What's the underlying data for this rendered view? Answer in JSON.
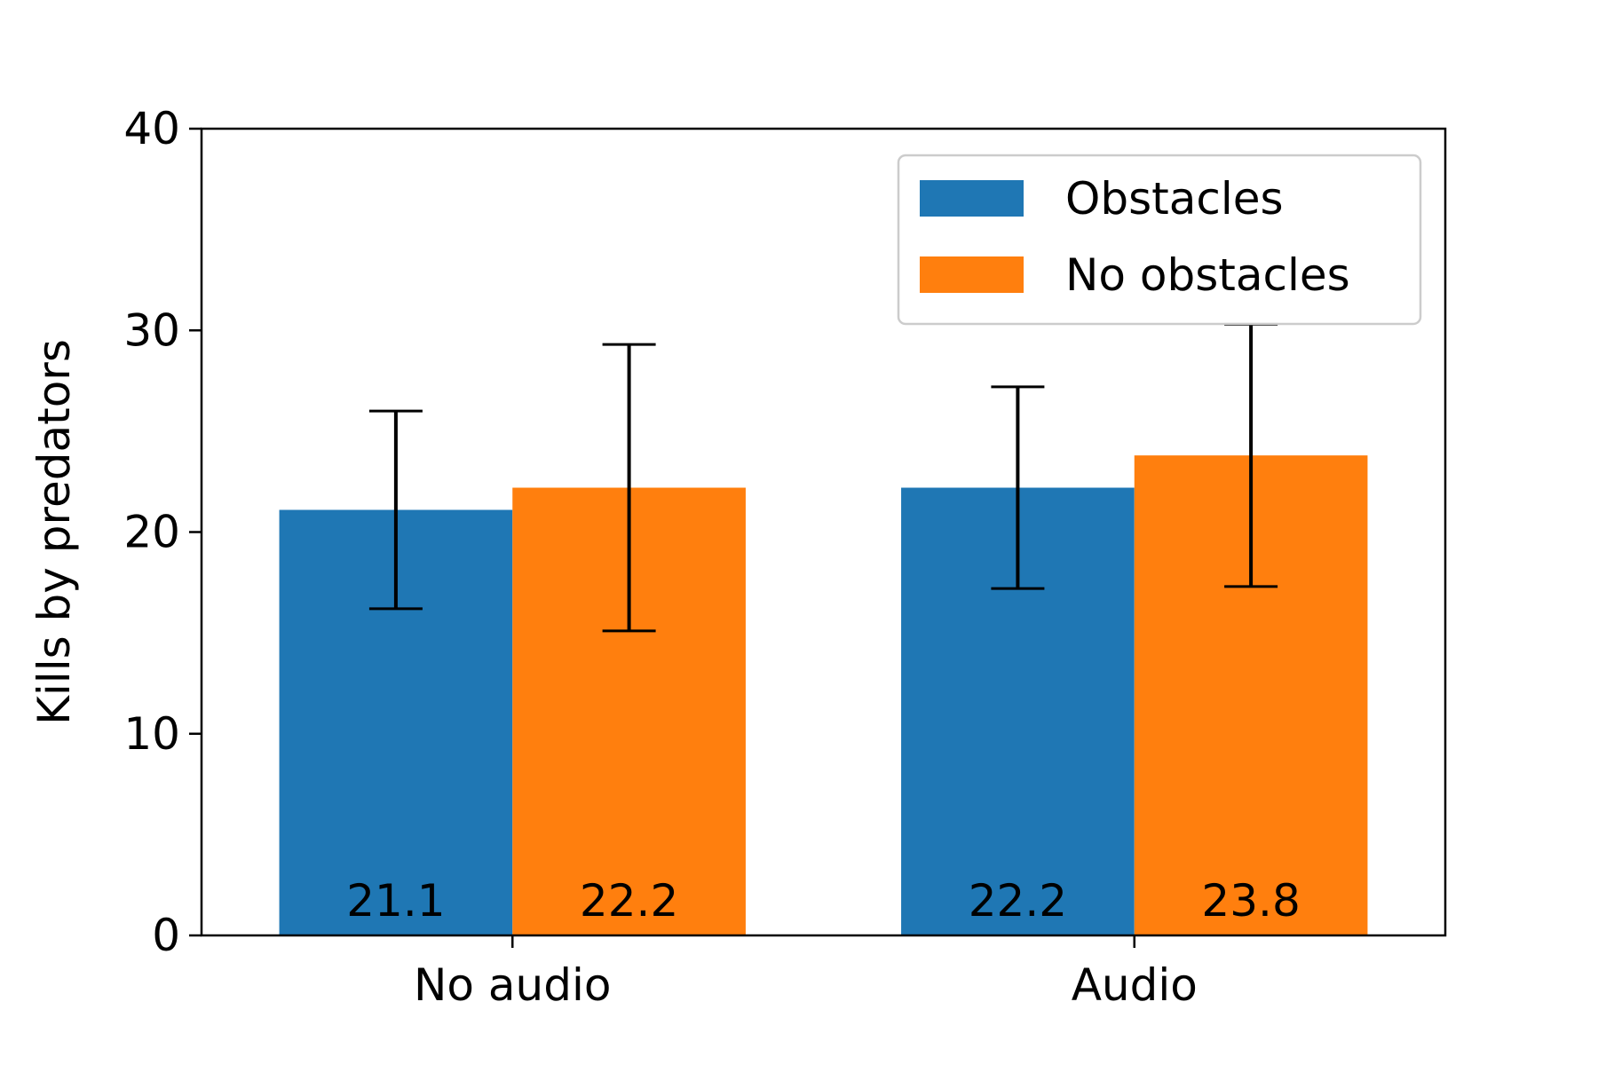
{
  "chart_data": {
    "type": "bar",
    "categories": [
      "No audio",
      "Audio"
    ],
    "series": [
      {
        "name": "Obstacles",
        "color": "#1f77b4",
        "values": [
          21.1,
          22.2
        ],
        "labels": [
          "21.1",
          "22.2"
        ],
        "err_low": [
          16.2,
          17.2
        ],
        "err_high": [
          26.0,
          27.2
        ]
      },
      {
        "name": "No obstacles",
        "color": "#ff7f0e",
        "values": [
          22.2,
          23.8
        ],
        "labels": [
          "22.2",
          "23.8"
        ],
        "err_low": [
          15.1,
          17.3
        ],
        "err_high": [
          29.3,
          30.3
        ]
      }
    ],
    "title": "",
    "xlabel": "",
    "ylabel": "Kills by predators",
    "ylim": [
      0,
      40
    ],
    "yticks": [
      "0",
      "10",
      "20",
      "30",
      "40"
    ],
    "grid": false,
    "legend_position": "top-right"
  }
}
